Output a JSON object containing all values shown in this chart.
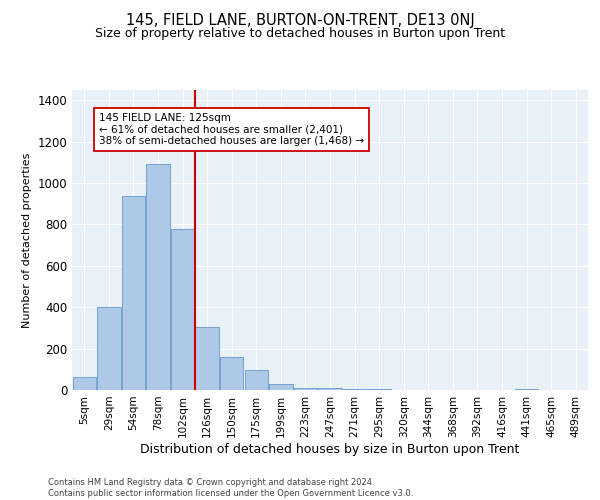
{
  "title": "145, FIELD LANE, BURTON-ON-TRENT, DE13 0NJ",
  "subtitle": "Size of property relative to detached houses in Burton upon Trent",
  "xlabel": "Distribution of detached houses by size in Burton upon Trent",
  "ylabel": "Number of detached properties",
  "footer": "Contains HM Land Registry data © Crown copyright and database right 2024.\nContains public sector information licensed under the Open Government Licence v3.0.",
  "categories": [
    "5sqm",
    "29sqm",
    "54sqm",
    "78sqm",
    "102sqm",
    "126sqm",
    "150sqm",
    "175sqm",
    "199sqm",
    "223sqm",
    "247sqm",
    "271sqm",
    "295sqm",
    "320sqm",
    "344sqm",
    "368sqm",
    "392sqm",
    "416sqm",
    "441sqm",
    "465sqm",
    "489sqm"
  ],
  "values": [
    65,
    400,
    940,
    1090,
    780,
    305,
    160,
    95,
    30,
    12,
    12,
    5,
    5,
    0,
    0,
    0,
    0,
    0,
    5,
    0,
    0
  ],
  "bar_color": "#aec9e8",
  "bar_edge_color": "#6699cc",
  "marker_index": 4.5,
  "marker_label": "145 FIELD LANE: 125sqm",
  "annotation_line1": "← 61% of detached houses are smaller (2,401)",
  "annotation_line2": "38% of semi-detached houses are larger (1,468) →",
  "marker_color": "#cc0000",
  "ylim": [
    0,
    1450
  ],
  "yticks": [
    0,
    200,
    400,
    600,
    800,
    1000,
    1200,
    1400
  ],
  "background_color": "#e8f0f8",
  "grid_color": "#ffffff",
  "title_fontsize": 10.5,
  "subtitle_fontsize": 9,
  "ylabel_fontsize": 8,
  "xlabel_fontsize": 9
}
